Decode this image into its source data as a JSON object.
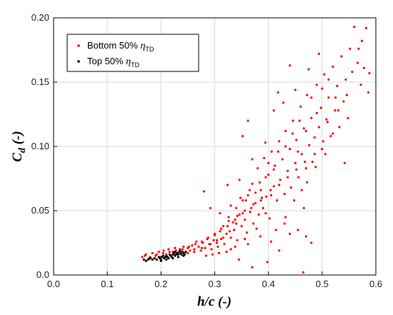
{
  "chart_data": {
    "type": "scatter",
    "xlabel": "h/c (-)",
    "ylabel_main": "C",
    "ylabel_sub": "d",
    "ylabel_tail": " (-)",
    "xlim": [
      0.0,
      0.6
    ],
    "ylim": [
      0.0,
      0.2
    ],
    "x_ticks": [
      "0.0",
      "0.1",
      "0.2",
      "0.3",
      "0.4",
      "0.5",
      "0.6"
    ],
    "y_ticks": [
      "0.0",
      "0.05",
      "0.10",
      "0.15",
      "0.20"
    ],
    "grid": true,
    "legend_position": "top-left",
    "series": [
      {
        "name_text": "Bottom 50% ",
        "name_symbol": "η",
        "name_sub": "TD",
        "color": "#ff0000",
        "points": [
          [
            0.165,
            0.014
          ],
          [
            0.172,
            0.016
          ],
          [
            0.178,
            0.013
          ],
          [
            0.184,
            0.017
          ],
          [
            0.19,
            0.015
          ],
          [
            0.196,
            0.018
          ],
          [
            0.2,
            0.014
          ],
          [
            0.205,
            0.019
          ],
          [
            0.21,
            0.016
          ],
          [
            0.214,
            0.02
          ],
          [
            0.218,
            0.015
          ],
          [
            0.222,
            0.018
          ],
          [
            0.226,
            0.021
          ],
          [
            0.23,
            0.017
          ],
          [
            0.235,
            0.02
          ],
          [
            0.238,
            0.016
          ],
          [
            0.242,
            0.022
          ],
          [
            0.246,
            0.018
          ],
          [
            0.25,
            0.021
          ],
          [
            0.254,
            0.019
          ],
          [
            0.258,
            0.023
          ],
          [
            0.262,
            0.02
          ],
          [
            0.266,
            0.026
          ],
          [
            0.27,
            0.022
          ],
          [
            0.274,
            0.019
          ],
          [
            0.278,
            0.025
          ],
          [
            0.282,
            0.021
          ],
          [
            0.286,
            0.028
          ],
          [
            0.29,
            0.024
          ],
          [
            0.294,
            0.02
          ],
          [
            0.298,
            0.027
          ],
          [
            0.3,
            0.031
          ],
          [
            0.304,
            0.025
          ],
          [
            0.306,
            0.022
          ],
          [
            0.31,
            0.034
          ],
          [
            0.312,
            0.028
          ],
          [
            0.316,
            0.038
          ],
          [
            0.318,
            0.024
          ],
          [
            0.322,
            0.032
          ],
          [
            0.326,
            0.045
          ],
          [
            0.33,
            0.029
          ],
          [
            0.334,
            0.041
          ],
          [
            0.336,
            0.035
          ],
          [
            0.34,
            0.052
          ],
          [
            0.342,
            0.027
          ],
          [
            0.346,
            0.047
          ],
          [
            0.35,
            0.038
          ],
          [
            0.352,
            0.058
          ],
          [
            0.356,
            0.043
          ],
          [
            0.36,
            0.033
          ],
          [
            0.362,
            0.062
          ],
          [
            0.366,
            0.049
          ],
          [
            0.37,
            0.071
          ],
          [
            0.372,
            0.04
          ],
          [
            0.376,
            0.056
          ],
          [
            0.38,
            0.083
          ],
          [
            0.382,
            0.047
          ],
          [
            0.386,
            0.066
          ],
          [
            0.39,
            0.052
          ],
          [
            0.392,
            0.091
          ],
          [
            0.396,
            0.061
          ],
          [
            0.4,
            0.078
          ],
          [
            0.402,
            0.044
          ],
          [
            0.406,
            0.096
          ],
          [
            0.41,
            0.069
          ],
          [
            0.412,
            0.085
          ],
          [
            0.416,
            0.058
          ],
          [
            0.42,
            0.104
          ],
          [
            0.422,
            0.074
          ],
          [
            0.426,
            0.09
          ],
          [
            0.43,
            0.063
          ],
          [
            0.432,
            0.112
          ],
          [
            0.436,
            0.081
          ],
          [
            0.44,
            0.098
          ],
          [
            0.442,
            0.068
          ],
          [
            0.446,
            0.12
          ],
          [
            0.45,
            0.087
          ],
          [
            0.452,
            0.105
          ],
          [
            0.456,
            0.076
          ],
          [
            0.46,
            0.131
          ],
          [
            0.462,
            0.094
          ],
          [
            0.466,
            0.114
          ],
          [
            0.47,
            0.083
          ],
          [
            0.472,
            0.14
          ],
          [
            0.476,
            0.101
          ],
          [
            0.48,
            0.122
          ],
          [
            0.482,
            0.088
          ],
          [
            0.486,
            0.107
          ],
          [
            0.49,
            0.148
          ],
          [
            0.494,
            0.115
          ],
          [
            0.498,
            0.13
          ],
          [
            0.5,
            0.098
          ],
          [
            0.504,
            0.156
          ],
          [
            0.508,
            0.121
          ],
          [
            0.512,
            0.138
          ],
          [
            0.516,
            0.108
          ],
          [
            0.52,
            0.162
          ],
          [
            0.524,
            0.128
          ],
          [
            0.528,
            0.147
          ],
          [
            0.532,
            0.115
          ],
          [
            0.536,
            0.17
          ],
          [
            0.54,
            0.135
          ],
          [
            0.544,
            0.152
          ],
          [
            0.548,
            0.122
          ],
          [
            0.552,
            0.176
          ],
          [
            0.556,
            0.158
          ],
          [
            0.56,
            0.193
          ],
          [
            0.566,
            0.165
          ],
          [
            0.572,
            0.148
          ],
          [
            0.578,
            0.161
          ],
          [
            0.582,
            0.192
          ],
          [
            0.586,
            0.142
          ],
          [
            0.588,
            0.157
          ],
          [
            0.362,
            0.12
          ],
          [
            0.418,
            0.142
          ],
          [
            0.44,
            0.163
          ],
          [
            0.465,
            0.002
          ],
          [
            0.352,
            0.108
          ],
          [
            0.33,
            0.054
          ],
          [
            0.31,
            0.048
          ],
          [
            0.292,
            0.052
          ],
          [
            0.28,
            0.065
          ],
          [
            0.324,
            0.07
          ],
          [
            0.346,
            0.074
          ],
          [
            0.37,
            0.09
          ],
          [
            0.394,
            0.103
          ],
          [
            0.41,
            0.128
          ],
          [
            0.428,
            0.134
          ],
          [
            0.45,
            0.144
          ],
          [
            0.475,
            0.16
          ],
          [
            0.494,
            0.172
          ],
          [
            0.512,
            0.152
          ],
          [
            0.53,
            0.128
          ],
          [
            0.546,
            0.14
          ],
          [
            0.568,
            0.176
          ],
          [
            0.574,
            0.182
          ],
          [
            0.458,
            0.12
          ],
          [
            0.48,
            0.138
          ],
          [
            0.5,
            0.145
          ],
          [
            0.52,
            0.11
          ],
          [
            0.542,
            0.087
          ],
          [
            0.48,
            0.025
          ],
          [
            0.47,
            0.03
          ],
          [
            0.455,
            0.035
          ],
          [
            0.44,
            0.032
          ],
          [
            0.395,
            0.048
          ],
          [
            0.378,
            0.036
          ],
          [
            0.356,
            0.028
          ],
          [
            0.338,
            0.022
          ],
          [
            0.322,
            0.018
          ],
          [
            0.308,
            0.017
          ],
          [
            0.296,
            0.016
          ],
          [
            0.284,
            0.015
          ],
          [
            0.37,
            0.006
          ],
          [
            0.398,
            0.01
          ],
          [
            0.345,
            0.012
          ],
          [
            0.42,
            0.019
          ],
          [
            0.405,
            0.026
          ],
          [
            0.385,
            0.03
          ],
          [
            0.432,
            0.045
          ],
          [
            0.448,
            0.058
          ],
          [
            0.462,
            0.066
          ],
          [
            0.472,
            0.072
          ],
          [
            0.488,
            0.084
          ],
          [
            0.506,
            0.094
          ],
          [
            0.466,
            0.052
          ],
          [
            0.43,
            0.04
          ],
          [
            0.414,
            0.035
          ],
          [
            0.362,
            0.024
          ],
          [
            0.33,
            0.02
          ],
          [
            0.405,
            0.062
          ],
          [
            0.386,
            0.058
          ],
          [
            0.368,
            0.052
          ],
          [
            0.352,
            0.048
          ],
          [
            0.338,
            0.043
          ],
          [
            0.324,
            0.038
          ],
          [
            0.4,
            0.087
          ],
          [
            0.384,
            0.072
          ],
          [
            0.365,
            0.066
          ],
          [
            0.348,
            0.06
          ],
          [
            0.418,
            0.096
          ],
          [
            0.432,
            0.1
          ],
          [
            0.445,
            0.11
          ],
          [
            0.41,
            0.082
          ],
          [
            0.395,
            0.076
          ],
          [
            0.376,
            0.064
          ],
          [
            0.358,
            0.058
          ],
          [
            0.342,
            0.046
          ],
          [
            0.326,
            0.042
          ],
          [
            0.312,
            0.036
          ],
          [
            0.3,
            0.032
          ],
          [
            0.288,
            0.029
          ],
          [
            0.276,
            0.026
          ],
          [
            0.264,
            0.024
          ],
          [
            0.252,
            0.022
          ],
          [
            0.24,
            0.02
          ],
          [
            0.228,
            0.019
          ],
          [
            0.216,
            0.018
          ],
          [
            0.204,
            0.017
          ],
          [
            0.192,
            0.016
          ],
          [
            0.18,
            0.014
          ],
          [
            0.17,
            0.015
          ],
          [
            0.47,
            0.112
          ],
          [
            0.455,
            0.096
          ],
          [
            0.49,
            0.126
          ],
          [
            0.51,
            0.119
          ],
          [
            0.525,
            0.138
          ],
          [
            0.502,
            0.104
          ],
          [
            0.486,
            0.094
          ],
          [
            0.468,
            0.088
          ],
          [
            0.452,
            0.082
          ],
          [
            0.436,
            0.076
          ],
          [
            0.42,
            0.07
          ],
          [
            0.404,
            0.066
          ],
          [
            0.388,
            0.06
          ],
          [
            0.372,
            0.055
          ],
          [
            0.356,
            0.05
          ],
          [
            0.34,
            0.04
          ],
          [
            0.328,
            0.034
          ],
          [
            0.316,
            0.029
          ],
          [
            0.304,
            0.027
          ],
          [
            0.292,
            0.024
          ],
          [
            0.276,
            0.021
          ],
          [
            0.262,
            0.018
          ],
          [
            0.25,
            0.017
          ]
        ]
      },
      {
        "name_text": "Top 50% ",
        "name_symbol": "η",
        "name_sub": "TD",
        "color": "#000000",
        "points": [
          [
            0.168,
            0.012
          ],
          [
            0.172,
            0.011
          ],
          [
            0.176,
            0.012
          ],
          [
            0.18,
            0.013
          ],
          [
            0.184,
            0.012
          ],
          [
            0.188,
            0.013
          ],
          [
            0.192,
            0.012
          ],
          [
            0.196,
            0.014
          ],
          [
            0.198,
            0.013
          ],
          [
            0.2,
            0.012
          ],
          [
            0.202,
            0.014
          ],
          [
            0.204,
            0.015
          ],
          [
            0.206,
            0.013
          ],
          [
            0.208,
            0.014
          ],
          [
            0.21,
            0.015
          ],
          [
            0.212,
            0.014
          ],
          [
            0.214,
            0.013
          ],
          [
            0.216,
            0.016
          ],
          [
            0.218,
            0.015
          ],
          [
            0.22,
            0.014
          ],
          [
            0.222,
            0.016
          ],
          [
            0.224,
            0.017
          ],
          [
            0.226,
            0.015
          ],
          [
            0.228,
            0.016
          ],
          [
            0.23,
            0.017
          ],
          [
            0.232,
            0.016
          ],
          [
            0.234,
            0.018
          ],
          [
            0.236,
            0.017
          ],
          [
            0.238,
            0.016
          ],
          [
            0.24,
            0.018
          ],
          [
            0.242,
            0.017
          ],
          [
            0.244,
            0.016
          ],
          [
            0.246,
            0.018
          ],
          [
            0.2,
            0.011
          ],
          [
            0.21,
            0.012
          ],
          [
            0.222,
            0.013
          ],
          [
            0.232,
            0.014
          ],
          [
            0.242,
            0.015
          ],
          [
            0.236,
            0.019
          ],
          [
            0.226,
            0.018
          ]
        ]
      }
    ]
  }
}
